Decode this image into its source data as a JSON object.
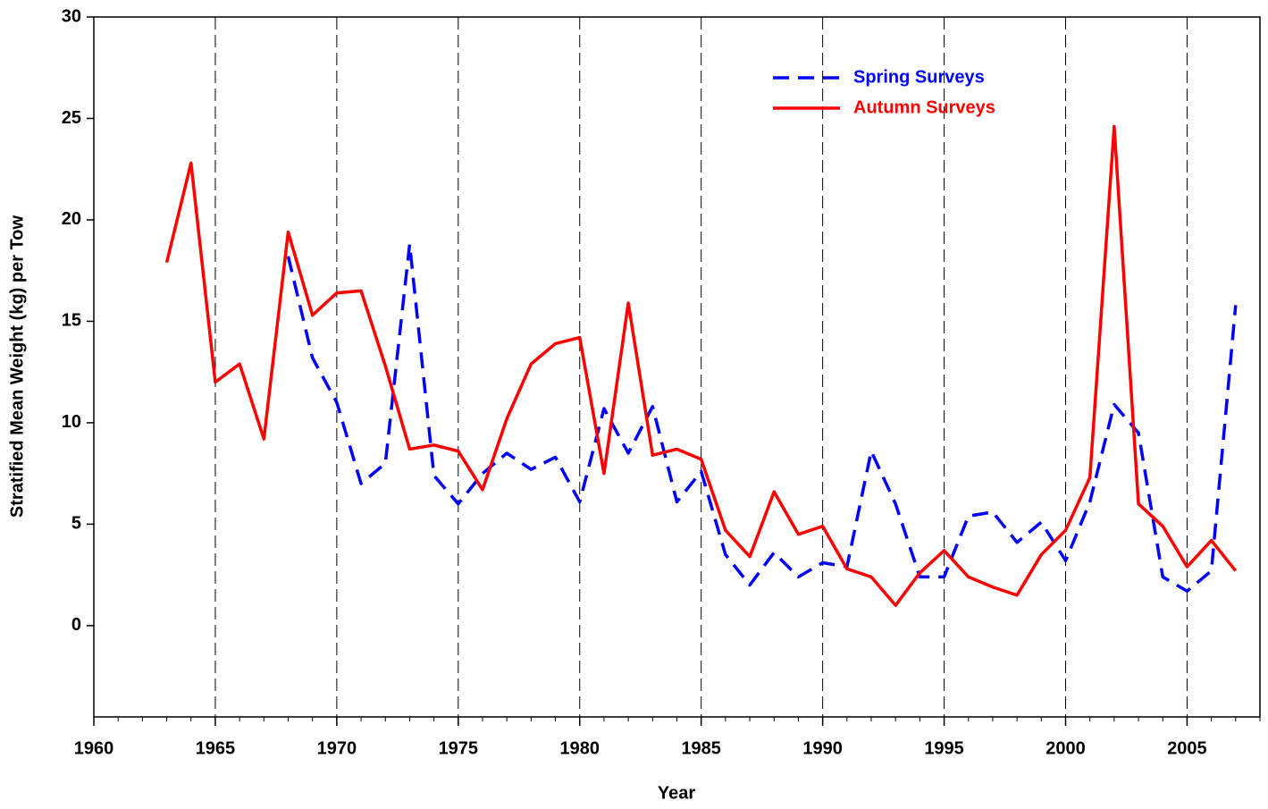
{
  "chart_data": {
    "type": "line",
    "x_label": "Year",
    "y_label": "Stratified Mean Weight (kg) per Tow",
    "x": [
      1963,
      1964,
      1965,
      1966,
      1967,
      1968,
      1969,
      1970,
      1971,
      1972,
      1973,
      1974,
      1975,
      1976,
      1977,
      1978,
      1979,
      1980,
      1981,
      1982,
      1983,
      1984,
      1985,
      1986,
      1987,
      1988,
      1989,
      1990,
      1991,
      1992,
      1993,
      1994,
      1995,
      1996,
      1997,
      1998,
      1999,
      2000,
      2001,
      2002,
      2003,
      2004,
      2005,
      2006,
      2007
    ],
    "series": [
      {
        "name": "Spring Surveys",
        "color": "#0000ff",
        "style": "dashed",
        "values": [
          null,
          null,
          null,
          null,
          null,
          18.2,
          13.2,
          11.0,
          7.0,
          8.0,
          18.8,
          7.4,
          6.0,
          7.5,
          8.5,
          7.7,
          8.3,
          6.1,
          10.7,
          8.5,
          10.8,
          6.1,
          7.6,
          3.5,
          2.0,
          3.6,
          2.4,
          3.1,
          2.9,
          8.6,
          6.0,
          2.4,
          2.4,
          5.4,
          5.6,
          4.1,
          5.1,
          3.2,
          6.1,
          10.9,
          9.5,
          2.4,
          1.7,
          2.7,
          15.8
        ]
      },
      {
        "name": "Autumn Surveys",
        "color": "#ff0000",
        "style": "solid",
        "values": [
          17.9,
          22.8,
          12.0,
          12.9,
          9.2,
          19.4,
          15.3,
          16.4,
          16.5,
          12.8,
          8.7,
          8.9,
          8.6,
          6.7,
          10.2,
          12.9,
          13.9,
          14.2,
          7.5,
          15.9,
          8.4,
          8.7,
          8.2,
          4.7,
          3.4,
          6.6,
          4.5,
          4.9,
          2.8,
          2.4,
          1.0,
          2.6,
          3.7,
          2.4,
          1.9,
          1.5,
          3.5,
          4.7,
          7.3,
          24.6,
          6.0,
          4.9,
          2.9,
          4.2,
          2.7
        ]
      }
    ],
    "xlim": [
      1960,
      2008
    ],
    "xticks": [
      1960,
      1965,
      1970,
      1975,
      1980,
      1985,
      1990,
      1995,
      2000,
      2005
    ],
    "xminor_step": 1,
    "ylim": [
      -4.5,
      30
    ],
    "yticks": [
      0,
      5,
      10,
      15,
      20,
      25,
      30
    ],
    "vertical_grid": true,
    "legend": "upper right"
  }
}
